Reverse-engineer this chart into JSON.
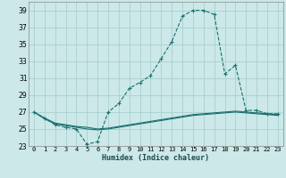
{
  "xlabel": "Humidex (Indice chaleur)",
  "background_color": "#cce8e8",
  "grid_color": "#aad0d0",
  "line_color": "#1a7070",
  "x_ticks": [
    0,
    1,
    2,
    3,
    4,
    5,
    6,
    7,
    8,
    9,
    10,
    11,
    12,
    13,
    14,
    15,
    16,
    17,
    18,
    19,
    20,
    21,
    22,
    23
  ],
  "x_tick_labels": [
    "0",
    "1",
    "2",
    "3",
    "4",
    "5",
    "6",
    "7",
    "8",
    "9",
    "10",
    "11",
    "12",
    "13",
    "14",
    "15",
    "16",
    "17",
    "18",
    "19",
    "20",
    "21",
    "22",
    "23"
  ],
  "ylim": [
    23,
    40
  ],
  "xlim": [
    -0.5,
    23.5
  ],
  "y_ticks": [
    23,
    25,
    27,
    29,
    31,
    33,
    35,
    37,
    39
  ],
  "series1_x": [
    0,
    1,
    2,
    3,
    4,
    5,
    6,
    7,
    8,
    9,
    10,
    11,
    12,
    13,
    14,
    15,
    16,
    17,
    18,
    19,
    20,
    21,
    22,
    23
  ],
  "series1_y": [
    27,
    26.3,
    25.5,
    25.2,
    25.0,
    23.2,
    23.5,
    27.0,
    28.0,
    29.8,
    30.5,
    31.3,
    33.3,
    35.3,
    38.3,
    39.0,
    39.0,
    38.5,
    31.5,
    32.5,
    27.2,
    27.2,
    26.8,
    26.8
  ],
  "series2_x": [
    0,
    1,
    2,
    3,
    4,
    5,
    6,
    7,
    8,
    9,
    10,
    11,
    12,
    13,
    14,
    15,
    16,
    17,
    18,
    19,
    20,
    21,
    22,
    23
  ],
  "series2_y": [
    27,
    26.3,
    25.7,
    25.5,
    25.3,
    25.2,
    25.0,
    25.1,
    25.3,
    25.5,
    25.7,
    25.9,
    26.1,
    26.3,
    26.5,
    26.7,
    26.8,
    26.9,
    27.0,
    27.1,
    27.0,
    26.9,
    26.8,
    26.7
  ],
  "series3_x": [
    0,
    1,
    2,
    3,
    4,
    5,
    6,
    7,
    8,
    9,
    10,
    11,
    12,
    13,
    14,
    15,
    16,
    17,
    18,
    19,
    20,
    21,
    22,
    23
  ],
  "series3_y": [
    27,
    26.2,
    25.6,
    25.4,
    25.2,
    25.0,
    24.9,
    25.0,
    25.2,
    25.4,
    25.6,
    25.8,
    26.0,
    26.2,
    26.4,
    26.6,
    26.7,
    26.8,
    26.9,
    27.0,
    26.9,
    26.8,
    26.7,
    26.6
  ]
}
